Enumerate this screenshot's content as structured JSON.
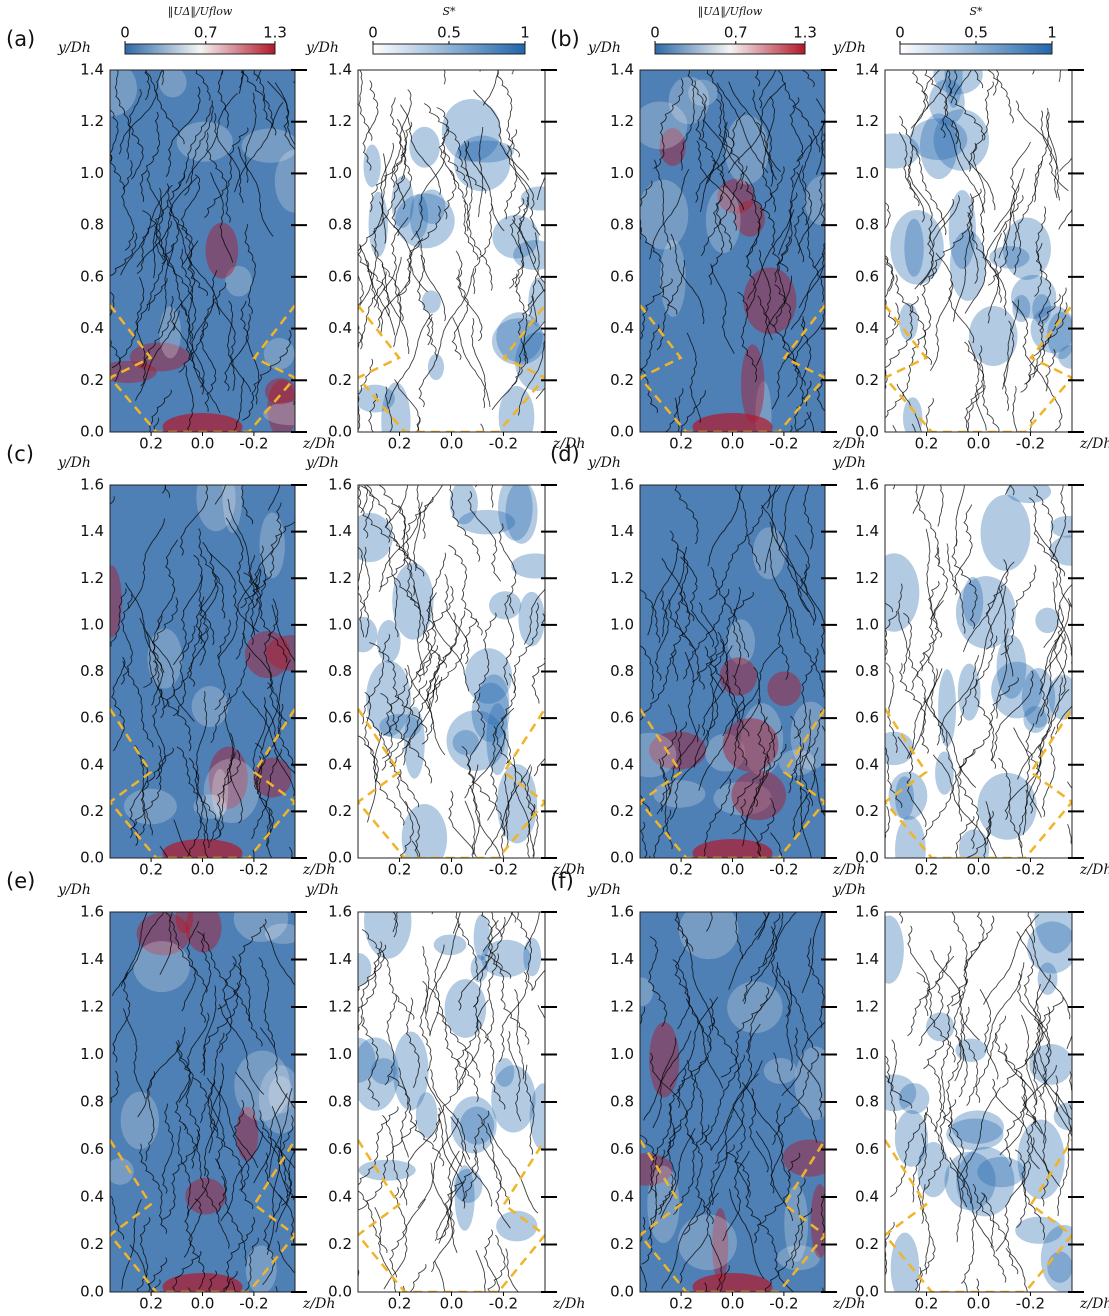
{
  "chart_data": [
    {
      "type": "streamline",
      "panel_label": "(a)",
      "xlabel": "z/Dh",
      "ylabel": "y/Dh",
      "xlim": [
        0.36,
        -0.36
      ],
      "xticks": [
        0.2,
        {
          "value": 0,
          "label": "0.0"
        },
        -0.2
      ],
      "ylim": [
        0,
        1.4
      ],
      "yticks": [
        {
          "value": 0,
          "label": "0.0"
        },
        0.2,
        0.4,
        0.6,
        0.8,
        {
          "value": 1,
          "label": "1.0"
        },
        1.2,
        1.4
      ],
      "colormap": [
        "#2f69a8",
        "#f4f4f4",
        "#b2182b"
      ],
      "colorbar": {
        "label": "‖UΔ‖/Uflow",
        "lim": [
          0,
          1.3
        ],
        "ticks": [
          0,
          0.7,
          1.3
        ]
      }
    },
    {
      "type": "streamline",
      "xlabel": "z/Dh",
      "ylabel": "y/Dh",
      "xlim": [
        0.36,
        -0.36
      ],
      "xticks": [
        0.2,
        {
          "value": 0,
          "label": "0.0"
        },
        -0.2
      ],
      "ylim": [
        0,
        1.4
      ],
      "yticks": [
        {
          "value": 0,
          "label": "0.0"
        },
        0.2,
        0.4,
        0.6,
        0.8,
        {
          "value": 1,
          "label": "1.0"
        },
        1.2,
        1.4
      ],
      "colormap": [
        "#ffffff",
        "#2166ac"
      ],
      "colorbar": {
        "label": "S*",
        "lim": [
          0,
          1
        ],
        "ticks": [
          0,
          0.5,
          1
        ]
      }
    },
    {
      "type": "streamline",
      "panel_label": "(b)",
      "xlabel": "z/Dh",
      "ylabel": "y/Dh",
      "xlim": [
        0.36,
        -0.36
      ],
      "xticks": [
        0.2,
        {
          "value": 0,
          "label": "0.0"
        },
        -0.2
      ],
      "ylim": [
        0,
        1.4
      ],
      "yticks": [
        {
          "value": 0,
          "label": "0.0"
        },
        0.2,
        0.4,
        0.6,
        0.8,
        {
          "value": 1,
          "label": "1.0"
        },
        1.2,
        1.4
      ],
      "colormap": [
        "#2f69a8",
        "#f4f4f4",
        "#b2182b"
      ],
      "colorbar": {
        "label": "‖UΔ‖/Uflow",
        "lim": [
          0,
          1.3
        ],
        "ticks": [
          0,
          0.7,
          1.3
        ]
      }
    },
    {
      "type": "streamline",
      "xlabel": "z/Dh",
      "ylabel": "y/Dh",
      "xlim": [
        0.36,
        -0.36
      ],
      "xticks": [
        0.2,
        {
          "value": 0,
          "label": "0.0"
        },
        -0.2
      ],
      "ylim": [
        0,
        1.4
      ],
      "yticks": [
        {
          "value": 0,
          "label": "0.0"
        },
        0.2,
        0.4,
        0.6,
        0.8,
        {
          "value": 1,
          "label": "1.0"
        },
        1.2,
        1.4
      ],
      "colormap": [
        "#ffffff",
        "#2166ac"
      ],
      "colorbar": {
        "label": "S*",
        "lim": [
          0,
          1
        ],
        "ticks": [
          0,
          0.5,
          1
        ]
      }
    },
    {
      "type": "streamline",
      "panel_label": "(c)",
      "xlabel": "z/Dh",
      "ylabel": "y/Dh",
      "xlim": [
        0.36,
        -0.36
      ],
      "xticks": [
        0.2,
        {
          "value": 0,
          "label": "0.0"
        },
        -0.2
      ],
      "ylim": [
        0,
        1.6
      ],
      "yticks": [
        {
          "value": 0,
          "label": "0.0"
        },
        0.2,
        0.4,
        0.6,
        0.8,
        {
          "value": 1,
          "label": "1.0"
        },
        1.2,
        1.4,
        1.6
      ],
      "colormap": [
        "#2f69a8",
        "#f4f4f4",
        "#b2182b"
      ]
    },
    {
      "type": "streamline",
      "xlabel": "z/Dh",
      "ylabel": "y/Dh",
      "xlim": [
        0.36,
        -0.36
      ],
      "xticks": [
        0.2,
        {
          "value": 0,
          "label": "0.0"
        },
        -0.2
      ],
      "ylim": [
        0,
        1.6
      ],
      "yticks": [
        {
          "value": 0,
          "label": "0.0"
        },
        0.2,
        0.4,
        0.6,
        0.8,
        {
          "value": 1,
          "label": "1.0"
        },
        1.2,
        1.4,
        1.6
      ],
      "colormap": [
        "#ffffff",
        "#2166ac"
      ]
    },
    {
      "type": "streamline",
      "panel_label": "(d)",
      "xlabel": "z/Dh",
      "ylabel": "y/Dh",
      "xlim": [
        0.36,
        -0.36
      ],
      "xticks": [
        0.2,
        {
          "value": 0,
          "label": "0.0"
        },
        -0.2
      ],
      "ylim": [
        0,
        1.6
      ],
      "yticks": [
        {
          "value": 0,
          "label": "0.0"
        },
        0.2,
        0.4,
        0.6,
        0.8,
        {
          "value": 1,
          "label": "1.0"
        },
        1.2,
        1.4,
        1.6
      ],
      "colormap": [
        "#2f69a8",
        "#f4f4f4",
        "#b2182b"
      ]
    },
    {
      "type": "streamline",
      "xlabel": "z/Dh",
      "ylabel": "y/Dh",
      "xlim": [
        0.36,
        -0.36
      ],
      "xticks": [
        0.2,
        {
          "value": 0,
          "label": "0.0"
        },
        -0.2
      ],
      "ylim": [
        0,
        1.6
      ],
      "yticks": [
        {
          "value": 0,
          "label": "0.0"
        },
        0.2,
        0.4,
        0.6,
        0.8,
        {
          "value": 1,
          "label": "1.0"
        },
        1.2,
        1.4,
        1.6
      ],
      "colormap": [
        "#ffffff",
        "#2166ac"
      ]
    },
    {
      "type": "streamline",
      "panel_label": "(e)",
      "xlabel": "z/Dh",
      "ylabel": "y/Dh",
      "xlim": [
        0.36,
        -0.36
      ],
      "xticks": [
        0.2,
        {
          "value": 0,
          "label": "0.0"
        },
        -0.2
      ],
      "ylim": [
        0,
        1.6
      ],
      "yticks": [
        {
          "value": 0,
          "label": "0.0"
        },
        0.2,
        0.4,
        0.6,
        0.8,
        {
          "value": 1,
          "label": "1.0"
        },
        1.2,
        1.4,
        1.6
      ],
      "colormap": [
        "#2f69a8",
        "#f4f4f4",
        "#b2182b"
      ]
    },
    {
      "type": "streamline",
      "xlabel": "z/Dh",
      "ylabel": "y/Dh",
      "xlim": [
        0.36,
        -0.36
      ],
      "xticks": [
        0.2,
        {
          "value": 0,
          "label": "0.0"
        },
        -0.2
      ],
      "ylim": [
        0,
        1.6
      ],
      "yticks": [
        {
          "value": 0,
          "label": "0.0"
        },
        0.2,
        0.4,
        0.6,
        0.8,
        {
          "value": 1,
          "label": "1.0"
        },
        1.2,
        1.4,
        1.6
      ],
      "colormap": [
        "#ffffff",
        "#2166ac"
      ]
    },
    {
      "type": "streamline",
      "panel_label": "(f)",
      "xlabel": "z/Dh",
      "ylabel": "y/Dh",
      "xlim": [
        0.36,
        -0.36
      ],
      "xticks": [
        0.2,
        {
          "value": 0,
          "label": "0.0"
        },
        -0.2
      ],
      "ylim": [
        0,
        1.6
      ],
      "yticks": [
        {
          "value": 0,
          "label": "0.0"
        },
        0.2,
        0.4,
        0.6,
        0.8,
        {
          "value": 1,
          "label": "1.0"
        },
        1.2,
        1.4,
        1.6
      ],
      "colormap": [
        "#2f69a8",
        "#f4f4f4",
        "#b2182b"
      ]
    },
    {
      "type": "streamline",
      "xlabel": "z/Dh",
      "ylabel": "y/Dh",
      "xlim": [
        0.36,
        -0.36
      ],
      "xticks": [
        0.2,
        {
          "value": 0,
          "label": "0.0"
        },
        -0.2
      ],
      "ylim": [
        0,
        1.6
      ],
      "yticks": [
        {
          "value": 0,
          "label": "0.0"
        },
        0.2,
        0.4,
        0.6,
        0.8,
        {
          "value": 1,
          "label": "1.0"
        },
        1.2,
        1.4,
        1.6
      ],
      "colormap": [
        "#ffffff",
        "#2166ac"
      ]
    }
  ]
}
